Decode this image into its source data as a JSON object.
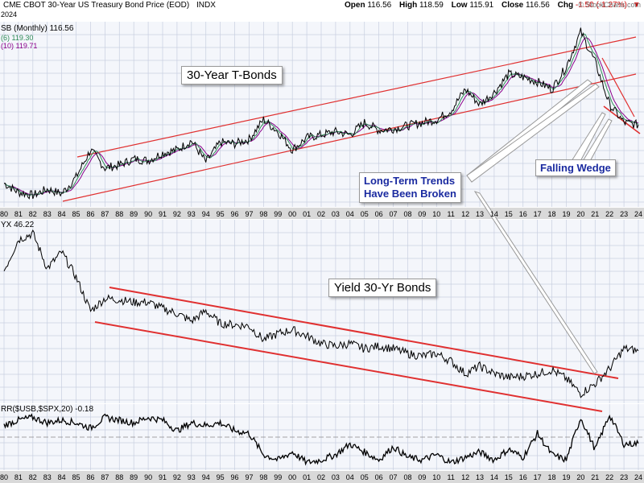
{
  "header": {
    "title": "CME CBOT 30-Year US Treasury Bond Price (EOD)",
    "exchange_tag": "INDX",
    "open_label": "Open",
    "open": "116.56",
    "high_label": "High",
    "high": "118.59",
    "low_label": "Low",
    "low": "115.91",
    "close_label": "Close",
    "close": "116.56",
    "chg_label": "Chg",
    "chg": "-1.50 (-1.27%)",
    "chg_arrow": "▼",
    "watermark": "© StockCharts.com",
    "date_fragment": "2024"
  },
  "legends": {
    "price_main": "SB (Monthly) 116.56",
    "ma_short": "(6) 119.30",
    "ma_long": "(10) 119.71",
    "yield_main": "YX 46.22",
    "corr_main": "RR($USB,$SPX,20) -0.18"
  },
  "annotations": {
    "tbonds": "30-Year T-Bonds",
    "yield": "Yield 30-Yr Bonds",
    "broken_line1": "Long-Term Trends",
    "broken_line2": "Have Been Broken",
    "wedge": "Falling Wedge"
  },
  "colors": {
    "price_line": "#000000",
    "ma_short": "#2e8b57",
    "ma_long": "#8b008b",
    "trend_lines": "#e03030",
    "annotation_blue": "#1a2aa0",
    "grid": "#c8cfe0",
    "axis_band": "#d9d9d9"
  },
  "chart_data": [
    {
      "type": "line",
      "panel": "price",
      "x": [
        1980,
        1981,
        1982,
        1983,
        1984,
        1985,
        1986,
        1987,
        1988,
        1989,
        1990,
        1991,
        1992,
        1993,
        1994,
        1995,
        1996,
        1997,
        1998,
        1999,
        2000,
        2001,
        2002,
        2003,
        2004,
        2005,
        2006,
        2007,
        2008,
        2009,
        2010,
        2011,
        2012,
        2013,
        2014,
        2015,
        2016,
        2017,
        2018,
        2019,
        2020,
        2021,
        2022,
        2023,
        2024
      ],
      "series": [
        {
          "name": "$USB",
          "values": [
            78,
            72,
            70,
            74,
            71,
            82,
            100,
            88,
            90,
            94,
            93,
            98,
            100,
            106,
            92,
            105,
            104,
            107,
            120,
            112,
            100,
            108,
            110,
            112,
            110,
            118,
            113,
            114,
            116,
            118,
            120,
            126,
            140,
            130,
            138,
            150,
            148,
            145,
            140,
            155,
            178,
            158,
            130,
            118,
            116.56
          ]
        }
      ],
      "annotations": [
        "30-Year T-Bonds",
        "Falling Wedge"
      ]
    },
    {
      "type": "line",
      "panel": "yield",
      "x": [
        1980,
        1981,
        1982,
        1983,
        1984,
        1985,
        1986,
        1987,
        1988,
        1989,
        1990,
        1991,
        1992,
        1993,
        1994,
        1995,
        1996,
        1997,
        1998,
        1999,
        2000,
        2001,
        2002,
        2003,
        2004,
        2005,
        2006,
        2007,
        2008,
        2009,
        2010,
        2011,
        2012,
        2013,
        2014,
        2015,
        2016,
        2017,
        2018,
        2019,
        2020,
        2021,
        2022,
        2023,
        2024
      ],
      "series": [
        {
          "name": "$TYX",
          "values": [
            110,
            135,
            140,
            112,
            125,
            105,
            78,
            88,
            87,
            85,
            85,
            80,
            76,
            70,
            78,
            68,
            67,
            66,
            55,
            60,
            63,
            58,
            52,
            50,
            52,
            48,
            50,
            48,
            44,
            42,
            44,
            38,
            28,
            34,
            28,
            25,
            26,
            28,
            31,
            24,
            12,
            20,
            32,
            48,
            46.22
          ]
        }
      ],
      "annotations": [
        "Yield 30-Yr Bonds"
      ]
    },
    {
      "type": "line",
      "panel": "correlation",
      "x": [
        1980,
        1981,
        1982,
        1983,
        1984,
        1985,
        1986,
        1987,
        1988,
        1989,
        1990,
        1991,
        1992,
        1993,
        1994,
        1995,
        1996,
        1997,
        1998,
        1999,
        2000,
        2001,
        2002,
        2003,
        2004,
        2005,
        2006,
        2007,
        2008,
        2009,
        2010,
        2011,
        2012,
        2013,
        2014,
        2015,
        2016,
        2017,
        2018,
        2019,
        2020,
        2021,
        2022,
        2023,
        2024
      ],
      "series": [
        {
          "name": "CORR($USB,$SPX,20)",
          "values": [
            0.5,
            0.7,
            0.8,
            0.6,
            0.7,
            0.6,
            0.4,
            0.8,
            0.7,
            0.6,
            0.8,
            0.7,
            0.3,
            0.6,
            0.5,
            0.6,
            0.3,
            0.2,
            -0.6,
            -0.8,
            -0.5,
            -0.9,
            -0.8,
            -0.6,
            -0.2,
            -0.5,
            -0.8,
            -0.3,
            -0.7,
            -0.8,
            -0.6,
            -0.9,
            -0.7,
            -0.5,
            -0.8,
            -0.4,
            -0.7,
            0.2,
            -0.6,
            -0.8,
            0.8,
            -0.4,
            0.9,
            -0.2,
            -0.18
          ]
        }
      ]
    }
  ],
  "x_axis_labels": [
    "80",
    "81",
    "82",
    "83",
    "84",
    "85",
    "86",
    "87",
    "88",
    "89",
    "90",
    "91",
    "92",
    "93",
    "94",
    "95",
    "96",
    "97",
    "98",
    "99",
    "00",
    "01",
    "02",
    "03",
    "04",
    "05",
    "06",
    "07",
    "08",
    "09",
    "10",
    "11",
    "12",
    "13",
    "14",
    "15",
    "16",
    "17",
    "18",
    "19",
    "20",
    "21",
    "22",
    "23",
    "24"
  ]
}
